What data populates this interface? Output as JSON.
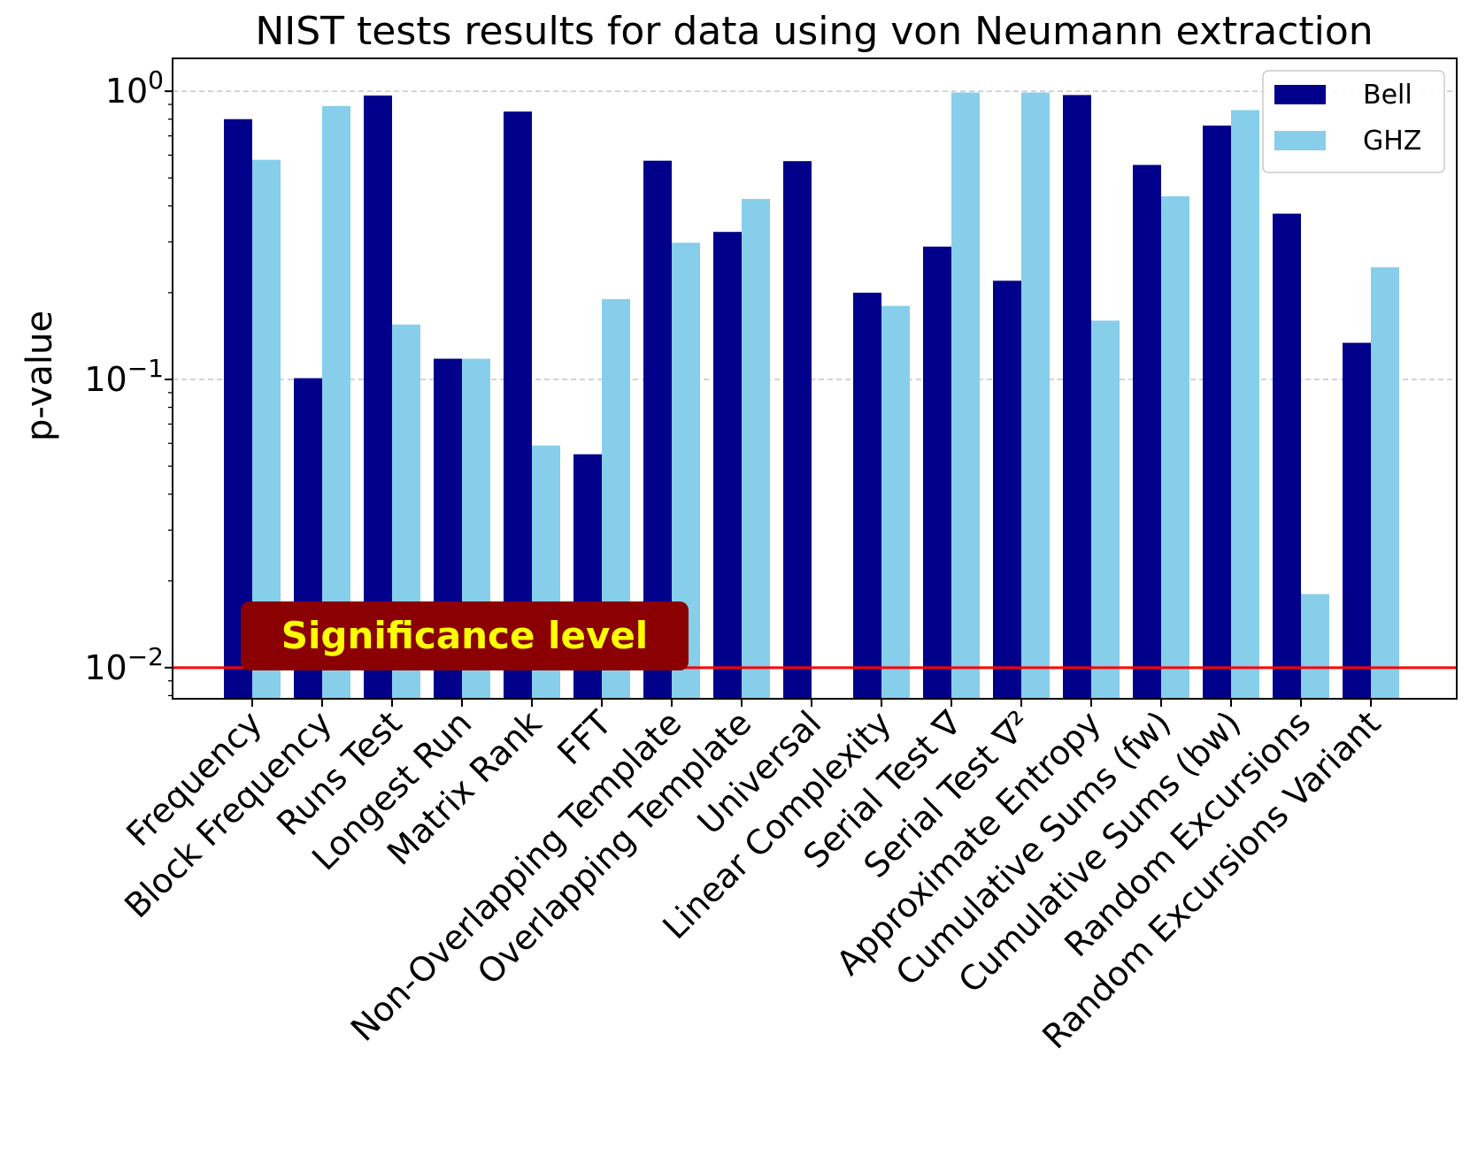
{
  "chart_data": {
    "type": "bar",
    "title": "NIST tests results for data using von Neumann extraction",
    "xlabel": "",
    "ylabel": "p-value",
    "yscale": "log",
    "ylim": [
      0.0078,
      1.3
    ],
    "yticks": [
      {
        "value": 0.01,
        "base": "10",
        "exp": "−2"
      },
      {
        "value": 0.1,
        "base": "10",
        "exp": "−1"
      },
      {
        "value": 1,
        "base": "10",
        "exp": "0"
      }
    ],
    "grid": "horizontal dashed at major ticks",
    "legend_position": "top-right",
    "categories": [
      "Frequency",
      "Block Frequency",
      "Runs Test",
      "Longest Run",
      "Matrix Rank",
      "FFT",
      "Non-Overlapping Template",
      "Overlapping Template",
      "Universal",
      "Linear Complexity",
      "Serial Test ∇",
      "Serial Test ∇²",
      "Approximate Entropy",
      "Cumulative Sums (fw)",
      "Cumulative Sums (bw)",
      "Random Excursions",
      "Random Excursions Variant"
    ],
    "series": [
      {
        "name": "Bell",
        "color": "#00008b",
        "values": [
          0.8,
          0.101,
          0.966,
          0.118,
          0.85,
          0.055,
          0.574,
          0.325,
          0.572,
          0.2,
          0.289,
          0.22,
          0.97,
          0.555,
          0.76,
          0.376,
          0.134
        ]
      },
      {
        "name": "GHZ",
        "color": "#87ceeb",
        "values": [
          0.578,
          0.888,
          0.155,
          0.118,
          0.059,
          0.19,
          0.298,
          0.423,
          null,
          0.18,
          0.99,
          0.99,
          0.16,
          0.432,
          0.86,
          0.018,
          0.245
        ]
      }
    ],
    "threshold": {
      "value": 0.01,
      "color": "#ff0000",
      "label": "Significance level",
      "label_bg": "#8b0000",
      "label_color": "#ffff00"
    },
    "grid_color": "#bbbbbb"
  }
}
